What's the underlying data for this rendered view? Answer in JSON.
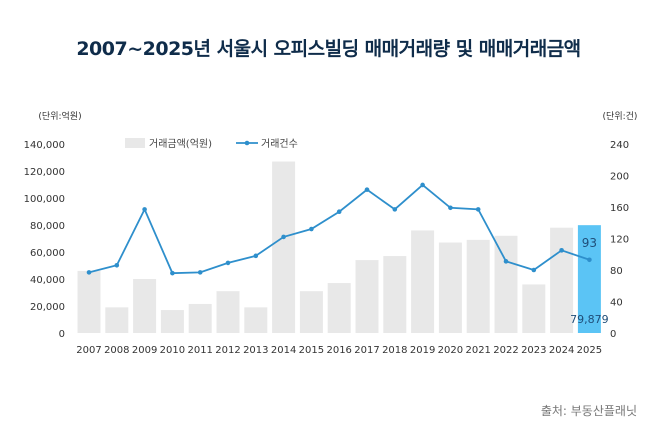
{
  "chart_data": {
    "type": "bar+line",
    "title": "2007~2025년 서울시 오피스빌딩 매매거래량 및 매매거래금액",
    "source": "출처: 부동산플래닛",
    "left_unit": "(단위:억원)",
    "right_unit": "(단위:건)",
    "categories": [
      "2007",
      "2008",
      "2009",
      "2010",
      "2011",
      "2012",
      "2013",
      "2014",
      "2015",
      "2016",
      "2017",
      "2018",
      "2019",
      "2020",
      "2021",
      "2022",
      "2023",
      "2024",
      "2025"
    ],
    "left_ylim": [
      0,
      140000
    ],
    "left_ticks": [
      "0",
      "20,000",
      "40,000",
      "60,000",
      "80,000",
      "100,000",
      "120,000",
      "140,000"
    ],
    "right_ylim": [
      0,
      240
    ],
    "right_ticks": [
      "0",
      "40",
      "80",
      "120",
      "160",
      "200",
      "240"
    ],
    "legend_placement": "top-left",
    "series": [
      {
        "name": "거래금액(억원)",
        "type": "bar",
        "axis": "left",
        "color": "#e8e8e8",
        "highlight_color": "#5bc4f5",
        "values": [
          46000,
          19000,
          40000,
          17000,
          21500,
          31000,
          19000,
          127000,
          31000,
          37000,
          54000,
          57000,
          76000,
          67000,
          69000,
          72000,
          36000,
          78000,
          79879
        ]
      },
      {
        "name": "거래건수",
        "type": "line",
        "axis": "right",
        "color": "#2e8fcc",
        "values": [
          77,
          86,
          157,
          76,
          77,
          89,
          98,
          122,
          132,
          154,
          182,
          157,
          188,
          159,
          157,
          91,
          80,
          105,
          93
        ]
      }
    ],
    "annotations": {
      "bar_last_label": "79,879",
      "line_last_label": "93"
    }
  }
}
